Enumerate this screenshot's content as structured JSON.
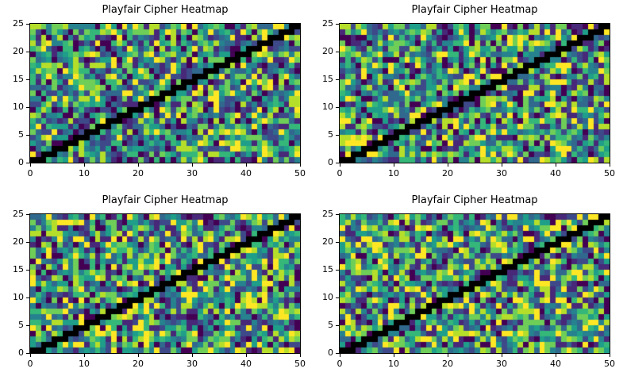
{
  "colors": {
    "background": "#ffffff",
    "text": "#000000",
    "spine": "#000000",
    "diagonal": "#000000",
    "viridis_palette": [
      "#440154",
      "#482878",
      "#3e4989",
      "#31688e",
      "#26828e",
      "#1f9e89",
      "#35b779",
      "#6ece58",
      "#b5de2b",
      "#fde725"
    ]
  },
  "chart_data": [
    {
      "type": "heatmap",
      "position": "top-left",
      "title": "Playfair Cipher Heatmap",
      "xlabel": "",
      "ylabel": "",
      "xlim": [
        0,
        50
      ],
      "ylim": [
        0,
        25
      ],
      "x_ticks": [
        0,
        10,
        20,
        30,
        40,
        50
      ],
      "y_ticks": [
        0,
        5,
        10,
        15,
        20,
        25
      ],
      "n_cols": 50,
      "n_rows": 25,
      "colormap": "viridis",
      "grid": false,
      "legend": "none",
      "cells": "unlabeled uniform-random values spanning the full viridis range",
      "diagonal": {
        "color": "#000000",
        "rule": "black staircase of ~2-3 cells per row along y = x/2, from bottom-left (0,0) to top-right (50,25)"
      },
      "noise": {
        "kind": "uniform-random",
        "seed": 101
      }
    },
    {
      "type": "heatmap",
      "position": "top-right",
      "title": "Playfair Cipher Heatmap",
      "xlabel": "",
      "ylabel": "",
      "xlim": [
        0,
        50
      ],
      "ylim": [
        0,
        25
      ],
      "x_ticks": [
        0,
        10,
        20,
        30,
        40,
        50
      ],
      "y_ticks": [
        0,
        5,
        10,
        15,
        20,
        25
      ],
      "n_cols": 50,
      "n_rows": 25,
      "colormap": "viridis",
      "grid": false,
      "legend": "none",
      "cells": "unlabeled uniform-random values spanning the full viridis range",
      "diagonal": {
        "color": "#000000",
        "rule": "black staircase of ~2-3 cells per row along y = x/2, from bottom-left (0,0) to top-right (50,25)"
      },
      "noise": {
        "kind": "uniform-random",
        "seed": 202
      }
    },
    {
      "type": "heatmap",
      "position": "bottom-left",
      "title": "Playfair Cipher Heatmap",
      "xlabel": "",
      "ylabel": "",
      "xlim": [
        0,
        50
      ],
      "ylim": [
        0,
        25
      ],
      "x_ticks": [
        0,
        10,
        20,
        30,
        40,
        50
      ],
      "y_ticks": [
        0,
        5,
        10,
        15,
        20,
        25
      ],
      "n_cols": 50,
      "n_rows": 25,
      "colormap": "viridis",
      "grid": false,
      "legend": "none",
      "cells": "unlabeled uniform-random values spanning the full viridis range",
      "diagonal": {
        "color": "#000000",
        "rule": "black staircase of ~2-3 cells per row along y = x/2, from bottom-left (0,0) to top-right (50,25)"
      },
      "noise": {
        "kind": "uniform-random",
        "seed": 303
      }
    },
    {
      "type": "heatmap",
      "position": "bottom-right",
      "title": "Playfair Cipher Heatmap",
      "xlabel": "",
      "ylabel": "",
      "xlim": [
        0,
        50
      ],
      "ylim": [
        0,
        25
      ],
      "x_ticks": [
        0,
        10,
        20,
        30,
        40,
        50
      ],
      "y_ticks": [
        0,
        5,
        10,
        15,
        20,
        25
      ],
      "n_cols": 50,
      "n_rows": 25,
      "colormap": "viridis",
      "grid": false,
      "legend": "none",
      "cells": "unlabeled uniform-random values spanning the full viridis range",
      "diagonal": {
        "color": "#000000",
        "rule": "black staircase of ~2-3 cells per row along y = x/2, from bottom-left (0,0) to top-right (50,25)"
      },
      "noise": {
        "kind": "uniform-random",
        "seed": 404
      }
    }
  ]
}
